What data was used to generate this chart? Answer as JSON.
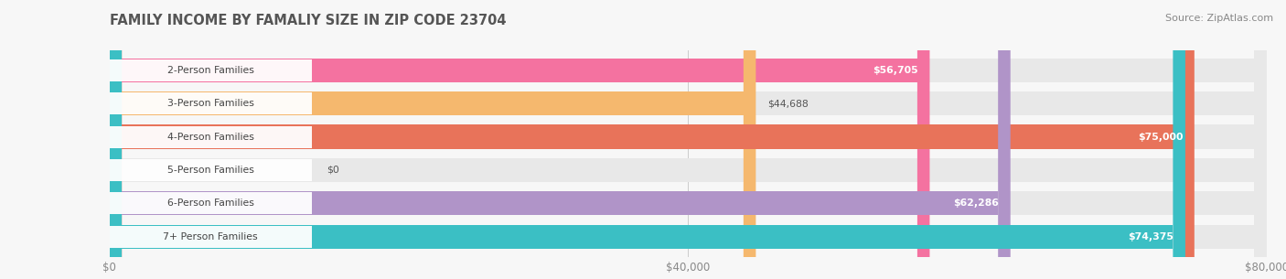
{
  "title": "FAMILY INCOME BY FAMALIY SIZE IN ZIP CODE 23704",
  "source": "Source: ZipAtlas.com",
  "categories": [
    "2-Person Families",
    "3-Person Families",
    "4-Person Families",
    "5-Person Families",
    "6-Person Families",
    "7+ Person Families"
  ],
  "values": [
    56705,
    44688,
    75000,
    0,
    62286,
    74375
  ],
  "bar_colors": [
    "#F472A0",
    "#F5B86E",
    "#E8735A",
    "#ADC6F0",
    "#B094C8",
    "#3BBFC4"
  ],
  "bar_bg_colors": [
    "#EBEBEB",
    "#EBEBEB",
    "#EBEBEB",
    "#EBEBEB",
    "#EBEBEB",
    "#EBEBEB"
  ],
  "value_labels": [
    "$56,705",
    "$44,688",
    "$75,000",
    "$0",
    "$62,286",
    "$74,375"
  ],
  "value_label_inside": [
    true,
    false,
    true,
    false,
    true,
    true
  ],
  "xlim": [
    0,
    80000
  ],
  "xticks": [
    0,
    40000,
    80000
  ],
  "xticklabels": [
    "$0",
    "$40,000",
    "$80,000"
  ],
  "background_color": "#f7f7f7",
  "title_color": "#555555",
  "label_color": "#555555",
  "title_fontsize": 10.5,
  "source_fontsize": 8,
  "bar_height": 0.72,
  "bar_gap": 0.28
}
